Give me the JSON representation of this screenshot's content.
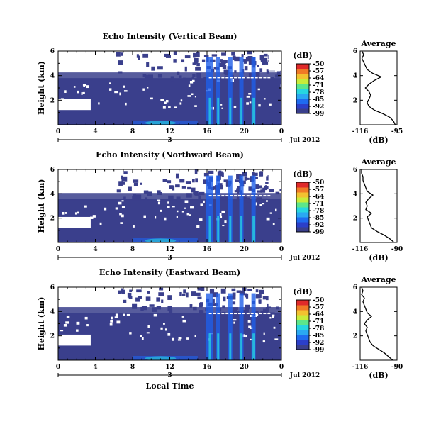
{
  "colors": {
    "background_white": "#ffffff",
    "data_dark_blue": "#3a3f8c",
    "plume_blue": "#1f5fe8",
    "cyan": "#27d6e0",
    "colorbar": [
      "#3a3f8c",
      "#2b3fc9",
      "#1f6bf0",
      "#2aa8f2",
      "#27d6e0",
      "#5de68a",
      "#c8ec3a",
      "#f2c230",
      "#f07a26",
      "#e02a2a"
    ]
  },
  "colorbar": {
    "unit": "(dB)",
    "labels": [
      "-50",
      "-57",
      "-64",
      "-71",
      "-78",
      "-85",
      "-92",
      "-99"
    ]
  },
  "x_axis": {
    "tick_labels": [
      "0",
      "4",
      "8",
      "12",
      "16",
      "20",
      "0"
    ],
    "date_day": "3",
    "month_year": "Jul 2012",
    "label": "Local Time"
  },
  "chart_data": [
    {
      "type": "heatmap",
      "title": "Echo Intensity (Vertical Beam)",
      "ylabel": "Height (km)",
      "yticks": [
        "6",
        "4",
        "2"
      ],
      "ylim": [
        0,
        6
      ],
      "xlim": [
        0,
        24
      ],
      "zlim": [
        -99,
        -50
      ],
      "layer_top_km": 3.8,
      "profile": {
        "title": "Average",
        "xlabel": "(dB)",
        "xlim": [
          -116,
          -95
        ],
        "xticks": [
          "-116",
          "-95"
        ],
        "yticks": [
          "6",
          "4",
          "2"
        ],
        "height_km": [
          0,
          0.3,
          0.6,
          0.9,
          1.2,
          1.5,
          1.8,
          2.1,
          2.4,
          2.7,
          3.0,
          3.3,
          3.6,
          3.9,
          4.2,
          4.5,
          4.8,
          5.1,
          5.4,
          5.7,
          6.0
        ],
        "value_db": [
          -96,
          -97,
          -99,
          -103,
          -108,
          -111,
          -112,
          -111,
          -110,
          -111,
          -113,
          -111,
          -108,
          -104,
          -109,
          -112,
          -113,
          -114,
          -115,
          -114,
          -115
        ]
      }
    },
    {
      "type": "heatmap",
      "title": "Echo Intensity (Northward Beam)",
      "ylabel": "Height (km)",
      "yticks": [
        "6",
        "4",
        "2"
      ],
      "ylim": [
        0,
        6
      ],
      "xlim": [
        0,
        24
      ],
      "zlim": [
        -99,
        -50
      ],
      "layer_top_km": 3.6,
      "profile": {
        "title": "Average",
        "xlabel": "(dB)",
        "xlim": [
          -116,
          -90
        ],
        "xticks": [
          "-116",
          "-90"
        ],
        "yticks": [
          "6",
          "4",
          "2"
        ],
        "height_km": [
          0,
          0.3,
          0.6,
          0.9,
          1.2,
          1.5,
          1.8,
          2.1,
          2.4,
          2.7,
          3.0,
          3.3,
          3.6,
          3.9,
          4.2,
          4.5,
          4.8,
          5.1,
          5.4,
          5.7,
          6.0
        ],
        "value_db": [
          -92,
          -95,
          -99,
          -104,
          -108,
          -109,
          -110,
          -111,
          -108,
          -112,
          -111,
          -112,
          -110,
          -107,
          -111,
          -112,
          -113,
          -114,
          -114,
          -115,
          -115
        ]
      }
    },
    {
      "type": "heatmap",
      "title": "Echo Intensity (Eastward Beam)",
      "ylabel": "Height (km)",
      "yticks": [
        "6",
        "4",
        "2"
      ],
      "ylim": [
        0,
        6
      ],
      "xlim": [
        0,
        24
      ],
      "zlim": [
        -99,
        -50
      ],
      "layer_top_km": 3.9,
      "profile": {
        "title": "Average",
        "xlabel": "(dB)",
        "xlim": [
          -116,
          -90
        ],
        "xticks": [
          "-116",
          "-90"
        ],
        "yticks": [
          "6",
          "4",
          "2"
        ],
        "height_km": [
          0,
          0.3,
          0.6,
          0.9,
          1.2,
          1.5,
          1.8,
          2.1,
          2.4,
          2.7,
          3.0,
          3.3,
          3.6,
          3.9,
          4.2,
          4.5,
          4.8,
          5.1,
          5.4,
          5.7,
          6.0
        ],
        "value_db": [
          -93,
          -96,
          -99,
          -103,
          -107,
          -109,
          -110,
          -111,
          -112,
          -111,
          -113,
          -111,
          -108,
          -111,
          -112,
          -113,
          -114,
          -113,
          -115,
          -114,
          -115
        ]
      }
    }
  ]
}
